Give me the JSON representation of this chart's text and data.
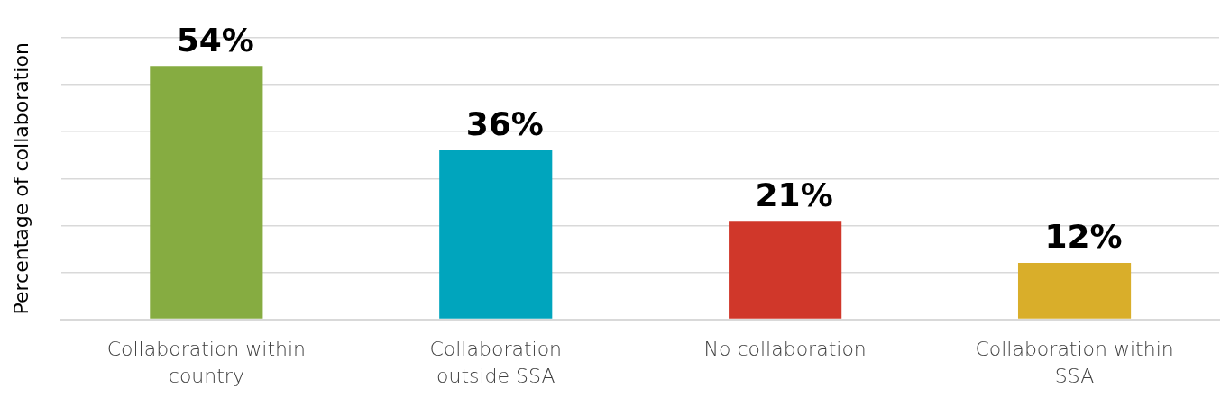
{
  "chart_data": {
    "type": "bar",
    "ylabel": "Percentage of collaboration",
    "categories": [
      "Collaboration within country",
      "Collaboration outside SSA",
      "No collaboration",
      "Collaboration within SSA"
    ],
    "values": [
      54,
      36,
      21,
      12
    ],
    "colors": [
      "#86ac41",
      "#00a5bd",
      "#d0372a",
      "#d9ae2a"
    ],
    "value_labels": [
      "54%",
      "36%",
      "21%",
      "12%"
    ],
    "ylim": [
      0,
      60
    ],
    "yticks": [
      {
        "value": 0,
        "label": null
      },
      {
        "value": 10,
        "label": null
      },
      {
        "value": 20,
        "label": null
      },
      {
        "value": 30,
        "label": null
      },
      {
        "value": 40,
        "label": null
      },
      {
        "value": 50,
        "label": null
      },
      {
        "value": 60,
        "label": null
      }
    ],
    "grid": "y",
    "tick_labels": "x",
    "legend": false
  }
}
